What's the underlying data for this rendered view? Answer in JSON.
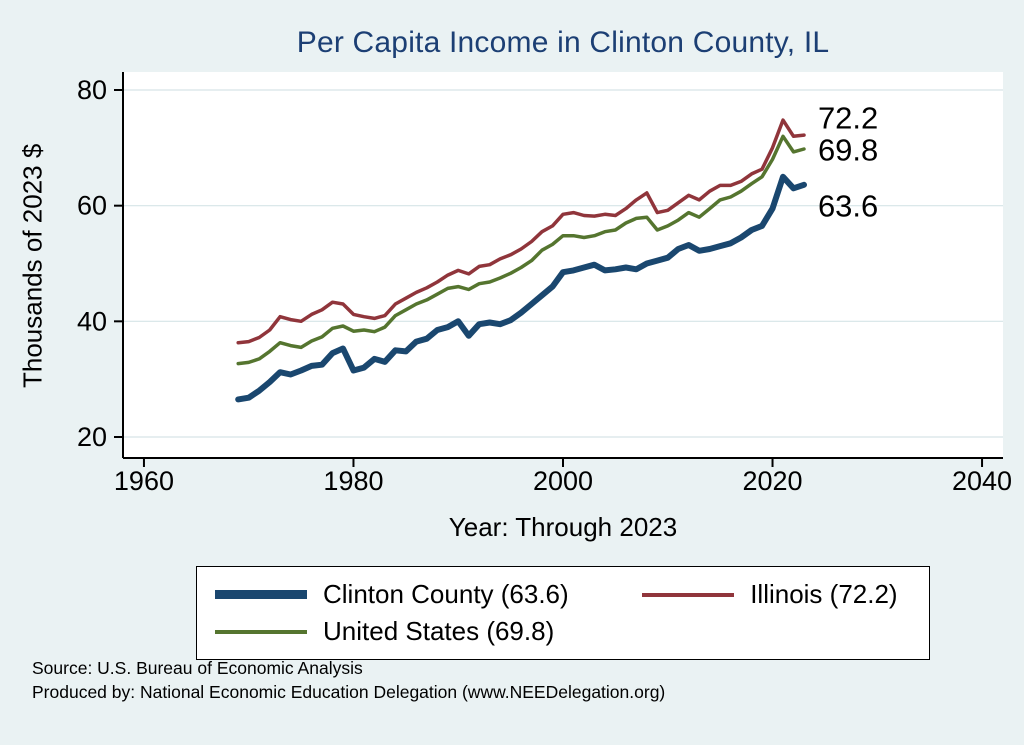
{
  "title": "Per Capita Income in Clinton County, IL",
  "axes": {
    "y_label": "Thousands of 2023 $",
    "x_label": "Year: Through 2023"
  },
  "legend": {
    "items": [
      {
        "label": "Clinton County (63.6)",
        "color": "#1a476f",
        "thick": true
      },
      {
        "label": "Illinois (72.2)",
        "color": "#90353b",
        "thick": false
      },
      {
        "label": "United States (69.8)",
        "color": "#55752f",
        "thick": false
      }
    ]
  },
  "footer": {
    "source": "Source: U.S. Bureau of Economic Analysis",
    "produced_by": "Produced by: National Economic Education Delegation (www.NEEDelegation.org)"
  },
  "colors": {
    "background": "#eaf2f3",
    "plot_bg": "#ffffff",
    "grid": "#d6e4e7",
    "title": "#1c3f74",
    "clinton_county": "#1a476f",
    "illinois": "#90353b",
    "united_states": "#55752f"
  },
  "chart_data": {
    "type": "line",
    "title": "Per Capita Income in Clinton County, IL",
    "xlabel": "Year: Through 2023",
    "ylabel": "Thousands of 2023 $",
    "xlim": [
      1958,
      2042
    ],
    "ylim": [
      16,
      83
    ],
    "x_ticks": [
      1960,
      1980,
      2000,
      2020,
      2040
    ],
    "y_ticks": [
      20,
      40,
      60,
      80
    ],
    "grid": "horizontal",
    "legend_position": "bottom",
    "x": [
      1969,
      1970,
      1971,
      1972,
      1973,
      1974,
      1975,
      1976,
      1977,
      1978,
      1979,
      1980,
      1981,
      1982,
      1983,
      1984,
      1985,
      1986,
      1987,
      1988,
      1989,
      1990,
      1991,
      1992,
      1993,
      1994,
      1995,
      1996,
      1997,
      1998,
      1999,
      2000,
      2001,
      2002,
      2003,
      2004,
      2005,
      2006,
      2007,
      2008,
      2009,
      2010,
      2011,
      2012,
      2013,
      2014,
      2015,
      2016,
      2017,
      2018,
      2019,
      2020,
      2021,
      2022,
      2023
    ],
    "series": [
      {
        "name": "Illinois",
        "color": "#90353b",
        "width": 3.5,
        "end_label": "72.2",
        "values": [
          36.3,
          36.5,
          37.2,
          38.5,
          40.8,
          40.3,
          40.0,
          41.2,
          42.0,
          43.3,
          43.0,
          41.2,
          40.8,
          40.5,
          41.0,
          43.0,
          44.0,
          45.0,
          45.8,
          46.8,
          48.0,
          48.8,
          48.2,
          49.5,
          49.8,
          50.8,
          51.5,
          52.5,
          53.8,
          55.5,
          56.5,
          58.5,
          58.8,
          58.3,
          58.2,
          58.5,
          58.3,
          59.5,
          61.0,
          62.2,
          58.8,
          59.2,
          60.5,
          61.8,
          61.0,
          62.5,
          63.5,
          63.5,
          64.2,
          65.5,
          66.3,
          70.0,
          74.8,
          72.0,
          72.2
        ]
      },
      {
        "name": "United States",
        "color": "#55752f",
        "width": 3.5,
        "end_label": "69.8",
        "values": [
          32.7,
          32.9,
          33.5,
          34.8,
          36.3,
          35.8,
          35.5,
          36.6,
          37.3,
          38.8,
          39.2,
          38.3,
          38.5,
          38.2,
          39.0,
          41.0,
          42.0,
          43.0,
          43.7,
          44.7,
          45.7,
          46.0,
          45.5,
          46.5,
          46.8,
          47.5,
          48.3,
          49.3,
          50.5,
          52.3,
          53.3,
          54.8,
          54.8,
          54.5,
          54.8,
          55.5,
          55.8,
          57.0,
          57.8,
          58.0,
          55.8,
          56.5,
          57.5,
          58.8,
          58.0,
          59.5,
          61.0,
          61.5,
          62.5,
          63.8,
          65.0,
          68.0,
          72.0,
          69.3,
          69.8
        ]
      },
      {
        "name": "Clinton County",
        "color": "#1a476f",
        "width": 6,
        "end_label": "63.6",
        "values": [
          26.5,
          26.8,
          28.0,
          29.5,
          31.2,
          30.8,
          31.5,
          32.3,
          32.5,
          34.5,
          35.3,
          31.5,
          32.0,
          33.5,
          33.0,
          35.0,
          34.8,
          36.5,
          37.0,
          38.5,
          39.0,
          40.0,
          37.5,
          39.5,
          39.8,
          39.5,
          40.2,
          41.5,
          43.0,
          44.5,
          46.0,
          48.5,
          48.8,
          49.3,
          49.8,
          48.8,
          49.0,
          49.3,
          49.0,
          50.0,
          50.5,
          51.0,
          52.5,
          53.2,
          52.2,
          52.5,
          53.0,
          53.5,
          54.5,
          55.8,
          56.5,
          59.5,
          65.0,
          63.0,
          63.6
        ]
      }
    ]
  }
}
